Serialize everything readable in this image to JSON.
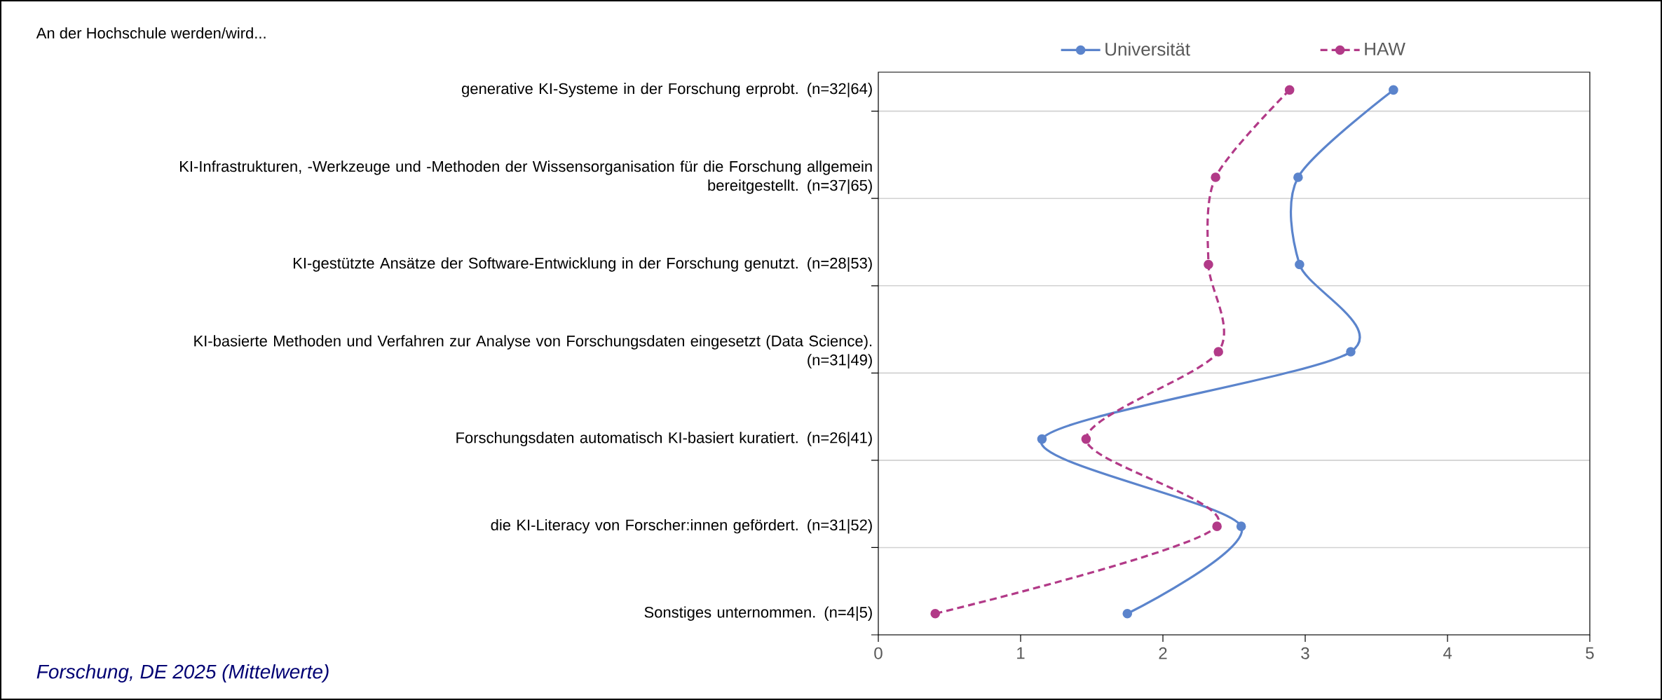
{
  "chart_data": {
    "type": "line",
    "orientation": "horizontal",
    "title": "An der Hochschule werden/wird...",
    "annotations": [
      "Forschung, DE 2025 (Mittelwerte)"
    ],
    "categories": [
      "generative KI-Systeme in der Forschung erprobt. (n=32|64)",
      "KI-Infrastrukturen, -Werkzeuge und -Methoden der Wissensorganisation für die Forschung allgemein bereitgestellt. (n=37|65)",
      "KI-gestützte Ansätze der Software-Entwicklung in der Forschung genutzt. (n=28|53)",
      "KI-basierte Methoden und Verfahren zur Analyse von Forschungsdaten eingesetzt (Data Science). (n=31|49)",
      "Forschungsdaten automatisch KI-basiert kuratiert. (n=26|41)",
      "die KI-Literacy von Forscher:innen gefördert. (n=31|52)",
      "Sonstiges unternommen. (n=4|5)"
    ],
    "series": [
      {
        "name": "Universität",
        "color": "#5b84cc",
        "line_style": "solid",
        "values": [
          3.62,
          2.95,
          2.96,
          3.32,
          1.15,
          2.55,
          1.75
        ]
      },
      {
        "name": "HAW",
        "color": "#b23a88",
        "line_style": "dashed",
        "values": [
          2.89,
          2.37,
          2.32,
          2.39,
          1.46,
          2.38,
          0.4
        ]
      }
    ],
    "xlim": [
      0,
      5
    ],
    "xticks": [
      0,
      1,
      2,
      3,
      4,
      5
    ],
    "grid": "y",
    "legend": "top",
    "marker": "circle"
  }
}
